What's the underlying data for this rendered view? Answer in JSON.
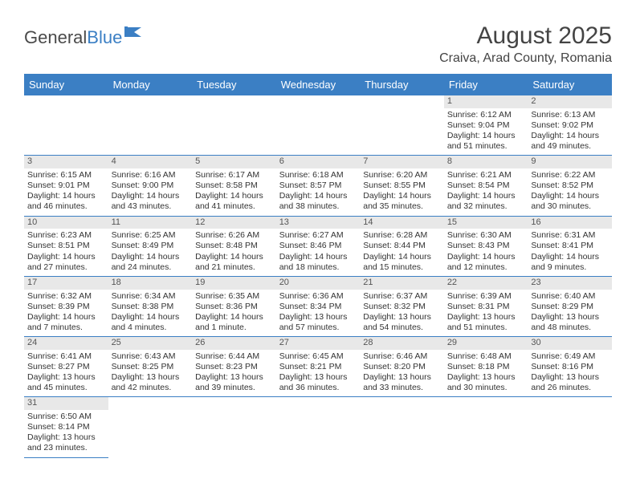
{
  "logo": {
    "general": "General",
    "blue": "Blue"
  },
  "title": "August 2025",
  "subtitle": "Craiva, Arad County, Romania",
  "headers": [
    "Sunday",
    "Monday",
    "Tuesday",
    "Wednesday",
    "Thursday",
    "Friday",
    "Saturday"
  ],
  "colors": {
    "accent": "#3b7fc4",
    "dayBg": "#e8e8e8",
    "text": "#333"
  },
  "weeks": [
    [
      null,
      null,
      null,
      null,
      null,
      {
        "n": "1",
        "sr": "Sunrise: 6:12 AM",
        "ss": "Sunset: 9:04 PM",
        "d1": "Daylight: 14 hours",
        "d2": "and 51 minutes."
      },
      {
        "n": "2",
        "sr": "Sunrise: 6:13 AM",
        "ss": "Sunset: 9:02 PM",
        "d1": "Daylight: 14 hours",
        "d2": "and 49 minutes."
      }
    ],
    [
      {
        "n": "3",
        "sr": "Sunrise: 6:15 AM",
        "ss": "Sunset: 9:01 PM",
        "d1": "Daylight: 14 hours",
        "d2": "and 46 minutes."
      },
      {
        "n": "4",
        "sr": "Sunrise: 6:16 AM",
        "ss": "Sunset: 9:00 PM",
        "d1": "Daylight: 14 hours",
        "d2": "and 43 minutes."
      },
      {
        "n": "5",
        "sr": "Sunrise: 6:17 AM",
        "ss": "Sunset: 8:58 PM",
        "d1": "Daylight: 14 hours",
        "d2": "and 41 minutes."
      },
      {
        "n": "6",
        "sr": "Sunrise: 6:18 AM",
        "ss": "Sunset: 8:57 PM",
        "d1": "Daylight: 14 hours",
        "d2": "and 38 minutes."
      },
      {
        "n": "7",
        "sr": "Sunrise: 6:20 AM",
        "ss": "Sunset: 8:55 PM",
        "d1": "Daylight: 14 hours",
        "d2": "and 35 minutes."
      },
      {
        "n": "8",
        "sr": "Sunrise: 6:21 AM",
        "ss": "Sunset: 8:54 PM",
        "d1": "Daylight: 14 hours",
        "d2": "and 32 minutes."
      },
      {
        "n": "9",
        "sr": "Sunrise: 6:22 AM",
        "ss": "Sunset: 8:52 PM",
        "d1": "Daylight: 14 hours",
        "d2": "and 30 minutes."
      }
    ],
    [
      {
        "n": "10",
        "sr": "Sunrise: 6:23 AM",
        "ss": "Sunset: 8:51 PM",
        "d1": "Daylight: 14 hours",
        "d2": "and 27 minutes."
      },
      {
        "n": "11",
        "sr": "Sunrise: 6:25 AM",
        "ss": "Sunset: 8:49 PM",
        "d1": "Daylight: 14 hours",
        "d2": "and 24 minutes."
      },
      {
        "n": "12",
        "sr": "Sunrise: 6:26 AM",
        "ss": "Sunset: 8:48 PM",
        "d1": "Daylight: 14 hours",
        "d2": "and 21 minutes."
      },
      {
        "n": "13",
        "sr": "Sunrise: 6:27 AM",
        "ss": "Sunset: 8:46 PM",
        "d1": "Daylight: 14 hours",
        "d2": "and 18 minutes."
      },
      {
        "n": "14",
        "sr": "Sunrise: 6:28 AM",
        "ss": "Sunset: 8:44 PM",
        "d1": "Daylight: 14 hours",
        "d2": "and 15 minutes."
      },
      {
        "n": "15",
        "sr": "Sunrise: 6:30 AM",
        "ss": "Sunset: 8:43 PM",
        "d1": "Daylight: 14 hours",
        "d2": "and 12 minutes."
      },
      {
        "n": "16",
        "sr": "Sunrise: 6:31 AM",
        "ss": "Sunset: 8:41 PM",
        "d1": "Daylight: 14 hours",
        "d2": "and 9 minutes."
      }
    ],
    [
      {
        "n": "17",
        "sr": "Sunrise: 6:32 AM",
        "ss": "Sunset: 8:39 PM",
        "d1": "Daylight: 14 hours",
        "d2": "and 7 minutes."
      },
      {
        "n": "18",
        "sr": "Sunrise: 6:34 AM",
        "ss": "Sunset: 8:38 PM",
        "d1": "Daylight: 14 hours",
        "d2": "and 4 minutes."
      },
      {
        "n": "19",
        "sr": "Sunrise: 6:35 AM",
        "ss": "Sunset: 8:36 PM",
        "d1": "Daylight: 14 hours",
        "d2": "and 1 minute."
      },
      {
        "n": "20",
        "sr": "Sunrise: 6:36 AM",
        "ss": "Sunset: 8:34 PM",
        "d1": "Daylight: 13 hours",
        "d2": "and 57 minutes."
      },
      {
        "n": "21",
        "sr": "Sunrise: 6:37 AM",
        "ss": "Sunset: 8:32 PM",
        "d1": "Daylight: 13 hours",
        "d2": "and 54 minutes."
      },
      {
        "n": "22",
        "sr": "Sunrise: 6:39 AM",
        "ss": "Sunset: 8:31 PM",
        "d1": "Daylight: 13 hours",
        "d2": "and 51 minutes."
      },
      {
        "n": "23",
        "sr": "Sunrise: 6:40 AM",
        "ss": "Sunset: 8:29 PM",
        "d1": "Daylight: 13 hours",
        "d2": "and 48 minutes."
      }
    ],
    [
      {
        "n": "24",
        "sr": "Sunrise: 6:41 AM",
        "ss": "Sunset: 8:27 PM",
        "d1": "Daylight: 13 hours",
        "d2": "and 45 minutes."
      },
      {
        "n": "25",
        "sr": "Sunrise: 6:43 AM",
        "ss": "Sunset: 8:25 PM",
        "d1": "Daylight: 13 hours",
        "d2": "and 42 minutes."
      },
      {
        "n": "26",
        "sr": "Sunrise: 6:44 AM",
        "ss": "Sunset: 8:23 PM",
        "d1": "Daylight: 13 hours",
        "d2": "and 39 minutes."
      },
      {
        "n": "27",
        "sr": "Sunrise: 6:45 AM",
        "ss": "Sunset: 8:21 PM",
        "d1": "Daylight: 13 hours",
        "d2": "and 36 minutes."
      },
      {
        "n": "28",
        "sr": "Sunrise: 6:46 AM",
        "ss": "Sunset: 8:20 PM",
        "d1": "Daylight: 13 hours",
        "d2": "and 33 minutes."
      },
      {
        "n": "29",
        "sr": "Sunrise: 6:48 AM",
        "ss": "Sunset: 8:18 PM",
        "d1": "Daylight: 13 hours",
        "d2": "and 30 minutes."
      },
      {
        "n": "30",
        "sr": "Sunrise: 6:49 AM",
        "ss": "Sunset: 8:16 PM",
        "d1": "Daylight: 13 hours",
        "d2": "and 26 minutes."
      }
    ],
    [
      {
        "n": "31",
        "sr": "Sunrise: 6:50 AM",
        "ss": "Sunset: 8:14 PM",
        "d1": "Daylight: 13 hours",
        "d2": "and 23 minutes."
      },
      null,
      null,
      null,
      null,
      null,
      null
    ]
  ]
}
